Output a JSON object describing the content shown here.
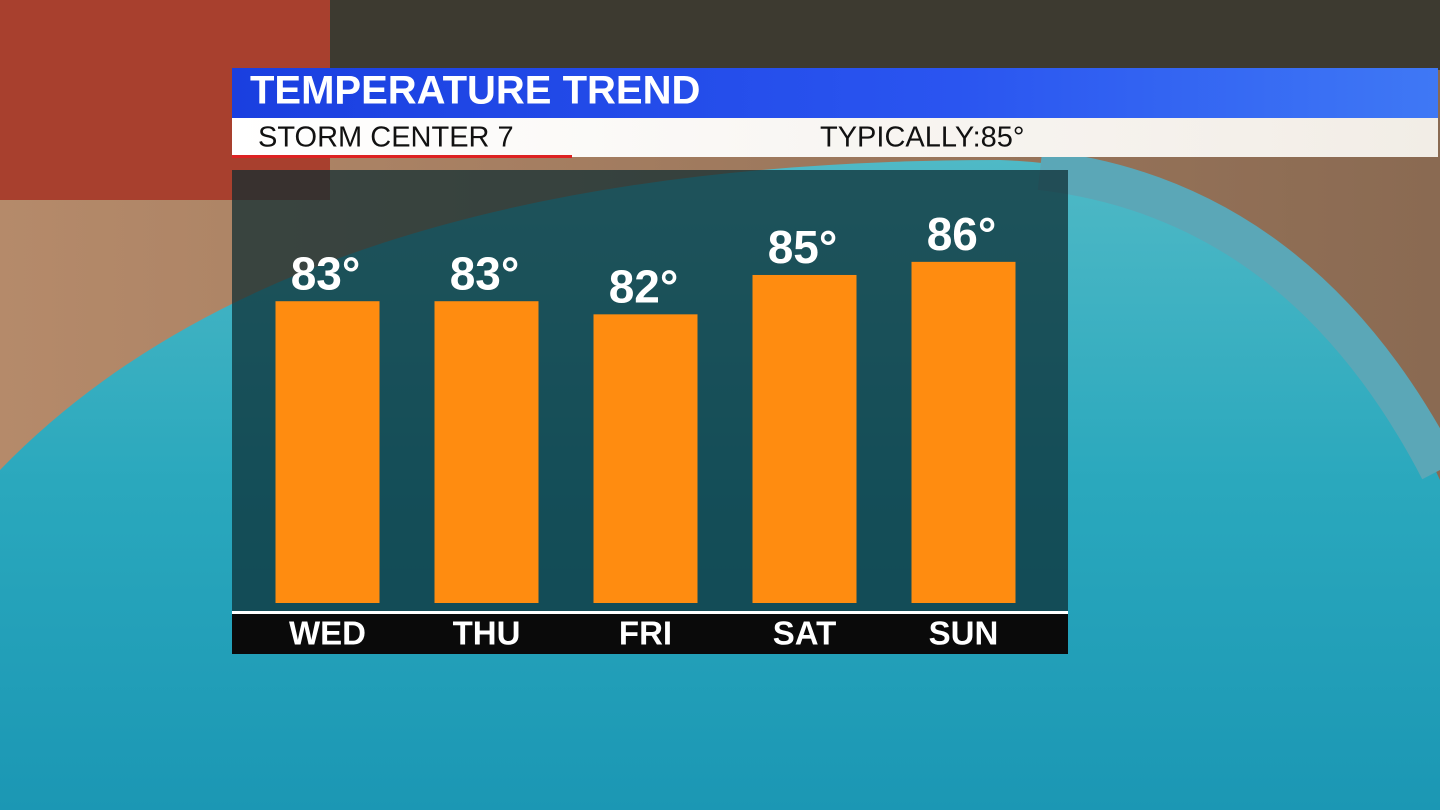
{
  "chart_data": {
    "type": "bar",
    "title": "TEMPERATURE TREND",
    "subtitle": "STORM CENTER 7",
    "annotation": "TYPICALLY:85°",
    "categories": [
      "WED",
      "THU",
      "FRI",
      "SAT",
      "SUN"
    ],
    "values": [
      83,
      83,
      82,
      85,
      86
    ],
    "value_labels": [
      "83°",
      "83°",
      "82°",
      "85°",
      "86°"
    ],
    "color": "#ff8c10",
    "ylim": [
      60,
      93
    ]
  }
}
